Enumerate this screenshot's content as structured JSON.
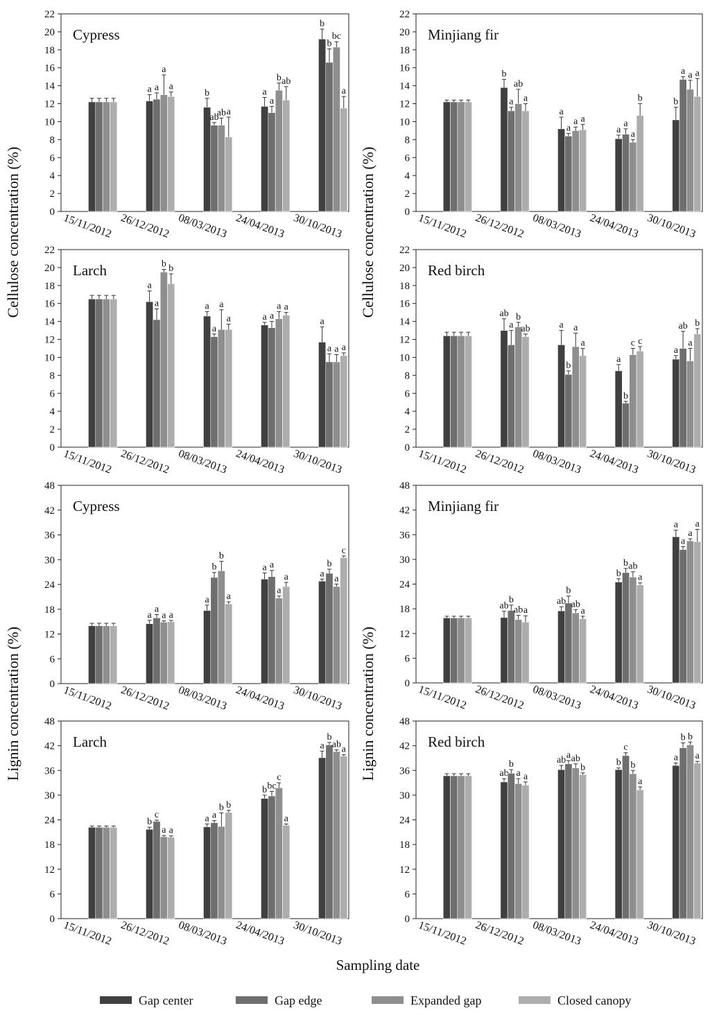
{
  "figure": {
    "y_axis_cellulose": "Cellulose concentration (%)",
    "y_axis_lignin": "Lignin concentration (%)",
    "x_axis_label": "Sampling date"
  },
  "legend": [
    {
      "name": "Gap center",
      "color": "#404040"
    },
    {
      "name": "Gap edge",
      "color": "#6e6e6e"
    },
    {
      "name": "Expanded gap",
      "color": "#8e8e8e"
    },
    {
      "name": "Closed canopy",
      "color": "#adadad"
    }
  ],
  "chart_data": [
    {
      "type": "bar",
      "title": "Cypress",
      "ylabel": "Cellulose concentration (%)",
      "ylim": [
        0,
        22
      ],
      "ytick_step": 2,
      "categories": [
        "15/11/2012",
        "26/12/2012",
        "08/03/2013",
        "24/04/2013",
        "30/10/2013"
      ],
      "series": [
        {
          "name": "Gap center",
          "values": [
            12.2,
            12.3,
            11.6,
            11.7,
            19.2
          ],
          "errors": [
            0.4,
            0.7,
            1.0,
            1.0,
            1.1
          ],
          "labels": [
            "",
            "a",
            "b",
            "a",
            "b"
          ]
        },
        {
          "name": "Gap edge",
          "values": [
            12.2,
            12.5,
            9.6,
            11.0,
            16.6
          ],
          "errors": [
            0.4,
            0.7,
            0.3,
            0.7,
            1.5
          ],
          "labels": [
            "",
            "a",
            "ab",
            "a",
            "b"
          ]
        },
        {
          "name": "Expanded gap",
          "values": [
            12.2,
            13.0,
            9.6,
            13.5,
            18.3
          ],
          "errors": [
            0.4,
            2.2,
            0.8,
            0.8,
            0.6
          ],
          "labels": [
            "",
            "a",
            "ab",
            "b",
            "bc"
          ]
        },
        {
          "name": "Closed canopy",
          "values": [
            12.2,
            12.8,
            8.3,
            12.4,
            11.5
          ],
          "errors": [
            0.4,
            0.5,
            2.2,
            1.5,
            1.3
          ],
          "labels": [
            "",
            "a",
            "a",
            "ab",
            "a"
          ]
        }
      ]
    },
    {
      "type": "bar",
      "title": "Minjiang fir",
      "ylabel": "Cellulose concentration (%)",
      "ylim": [
        0,
        22
      ],
      "ytick_step": 2,
      "categories": [
        "15/11/2012",
        "26/12/2012",
        "08/03/2013",
        "24/04/2013",
        "30/10/2013"
      ],
      "series": [
        {
          "name": "Gap center",
          "values": [
            12.2,
            13.8,
            9.2,
            8.1,
            10.2
          ],
          "errors": [
            0.2,
            0.9,
            1.3,
            0.4,
            1.4
          ],
          "labels": [
            "",
            "b",
            "a",
            "a",
            "b"
          ]
        },
        {
          "name": "Gap edge",
          "values": [
            12.2,
            11.2,
            8.4,
            8.6,
            14.7
          ],
          "errors": [
            0.2,
            0.4,
            0.3,
            0.6,
            0.3
          ],
          "labels": [
            "",
            "a",
            "a",
            "a",
            "a"
          ]
        },
        {
          "name": "Expanded gap",
          "values": [
            12.2,
            12.0,
            9.0,
            7.7,
            13.6
          ],
          "errors": [
            0.2,
            1.6,
            0.4,
            0.3,
            1.0
          ],
          "labels": [
            "",
            "ab",
            "a",
            "a",
            "a"
          ]
        },
        {
          "name": "Closed canopy",
          "values": [
            12.2,
            11.2,
            9.1,
            10.7,
            12.8
          ],
          "errors": [
            0.2,
            0.8,
            0.6,
            1.3,
            2.0
          ],
          "labels": [
            "",
            "a",
            "a",
            "b",
            "a"
          ]
        }
      ]
    },
    {
      "type": "bar",
      "title": "Larch",
      "ylabel": "Cellulose concentration (%)",
      "ylim": [
        0,
        22
      ],
      "ytick_step": 2,
      "categories": [
        "15/11/2012",
        "26/12/2012",
        "08/03/2013",
        "24/04/2013",
        "30/10/2013"
      ],
      "series": [
        {
          "name": "Gap center",
          "values": [
            16.5,
            16.2,
            14.6,
            13.6,
            11.7
          ],
          "errors": [
            0.4,
            1.2,
            0.5,
            0.3,
            1.7
          ],
          "labels": [
            "",
            "a",
            "a",
            "a",
            "a"
          ]
        },
        {
          "name": "Gap edge",
          "values": [
            16.5,
            14.2,
            12.3,
            13.3,
            9.5
          ],
          "errors": [
            0.4,
            1.2,
            0.3,
            0.7,
            0.9
          ],
          "labels": [
            "",
            "a",
            "a",
            "a",
            "a"
          ]
        },
        {
          "name": "Expanded gap",
          "values": [
            16.5,
            19.5,
            13.1,
            14.3,
            9.5
          ],
          "errors": [
            0.4,
            0.3,
            2.2,
            0.8,
            0.8
          ],
          "labels": [
            "",
            "b",
            "a",
            "a",
            "a"
          ]
        },
        {
          "name": "Closed canopy",
          "values": [
            16.5,
            18.2,
            13.1,
            14.7,
            10.2
          ],
          "errors": [
            0.4,
            1.1,
            0.6,
            0.3,
            0.3
          ],
          "labels": [
            "",
            "b",
            "a",
            "a",
            "a"
          ]
        }
      ]
    },
    {
      "type": "bar",
      "title": "Red birch",
      "ylabel": "Cellulose concentration (%)",
      "ylim": [
        0,
        22
      ],
      "ytick_step": 2,
      "categories": [
        "15/11/2012",
        "26/12/2012",
        "08/03/2013",
        "24/04/2013",
        "30/10/2013"
      ],
      "series": [
        {
          "name": "Gap center",
          "values": [
            12.4,
            13.0,
            11.4,
            8.5,
            9.8
          ],
          "errors": [
            0.4,
            1.3,
            1.6,
            0.7,
            0.4
          ],
          "labels": [
            "",
            "ab",
            "a",
            "a",
            "a"
          ]
        },
        {
          "name": "Gap edge",
          "values": [
            12.4,
            11.4,
            8.1,
            4.9,
            11.0
          ],
          "errors": [
            0.4,
            1.6,
            0.4,
            0.2,
            1.9
          ],
          "labels": [
            "",
            "a",
            "b",
            "b",
            "ab"
          ]
        },
        {
          "name": "Expanded gap",
          "values": [
            12.4,
            13.4,
            11.2,
            10.3,
            9.6
          ],
          "errors": [
            0.4,
            0.5,
            1.5,
            0.7,
            1.4
          ],
          "labels": [
            "",
            "b",
            "a",
            "c",
            "a"
          ]
        },
        {
          "name": "Closed canopy",
          "values": [
            12.4,
            12.3,
            10.2,
            10.7,
            12.6
          ],
          "errors": [
            0.4,
            0.3,
            0.8,
            0.5,
            0.6
          ],
          "labels": [
            "",
            "ab",
            "a",
            "c",
            "b"
          ]
        }
      ]
    },
    {
      "type": "bar",
      "title": "Cypress",
      "ylabel": "Lignin concentration (%)",
      "ylim": [
        0,
        48
      ],
      "ytick_step": 6,
      "categories": [
        "15/11/2012",
        "26/12/2012",
        "08/03/2013",
        "24/04/2013",
        "30/10/2013"
      ],
      "series": [
        {
          "name": "Gap center",
          "values": [
            14.0,
            14.5,
            17.7,
            25.3,
            24.8
          ],
          "errors": [
            0.6,
            0.8,
            1.3,
            1.5,
            0.5
          ],
          "labels": [
            "",
            "a",
            "a",
            "a",
            "a"
          ]
        },
        {
          "name": "Gap edge",
          "values": [
            14.0,
            15.9,
            25.7,
            25.9,
            26.7
          ],
          "errors": [
            0.6,
            0.8,
            1.2,
            1.5,
            1.0
          ],
          "labels": [
            "",
            "a",
            "b",
            "a",
            "b"
          ]
        },
        {
          "name": "Expanded gap",
          "values": [
            14.0,
            14.9,
            27.3,
            20.7,
            23.5
          ],
          "errors": [
            0.6,
            0.3,
            2.3,
            0.5,
            0.6
          ],
          "labels": [
            "",
            "a",
            "b",
            "a",
            "a"
          ]
        },
        {
          "name": "Closed canopy",
          "values": [
            14.0,
            15.0,
            19.3,
            23.5,
            30.5
          ],
          "errors": [
            0.6,
            0.3,
            0.5,
            1.0,
            0.4
          ],
          "labels": [
            "",
            "a",
            "a",
            "a",
            "c"
          ]
        }
      ]
    },
    {
      "type": "bar",
      "title": "Minjiang fir",
      "ylabel": "Lignin concentration (%)",
      "ylim": [
        0,
        48
      ],
      "ytick_step": 6,
      "categories": [
        "15/11/2012",
        "26/12/2012",
        "08/03/2013",
        "24/04/2013",
        "30/10/2013"
      ],
      "series": [
        {
          "name": "Gap center",
          "values": [
            15.8,
            15.9,
            17.5,
            24.5,
            35.5
          ],
          "errors": [
            0.4,
            1.5,
            1.0,
            0.8,
            1.6
          ],
          "labels": [
            "",
            "ab",
            "ab",
            "b",
            "a"
          ]
        },
        {
          "name": "Gap edge",
          "values": [
            15.8,
            17.6,
            19.4,
            26.8,
            32.4
          ],
          "errors": [
            0.4,
            1.3,
            1.7,
            1.0,
            0.7
          ],
          "labels": [
            "",
            "b",
            "b",
            "b",
            "a"
          ]
        },
        {
          "name": "Expanded gap",
          "values": [
            15.8,
            15.4,
            17.0,
            25.7,
            34.5
          ],
          "errors": [
            0.4,
            1.0,
            0.8,
            1.3,
            0.5
          ],
          "labels": [
            "",
            "ab",
            "ab",
            "ab",
            "a"
          ]
        },
        {
          "name": "Closed canopy",
          "values": [
            15.8,
            14.8,
            15.6,
            23.8,
            34.3
          ],
          "errors": [
            0.4,
            1.5,
            0.6,
            0.5,
            3.0
          ],
          "labels": [
            "",
            "a",
            "a",
            "a",
            "a"
          ]
        }
      ]
    },
    {
      "type": "bar",
      "title": "Larch",
      "ylabel": "Lignin concentration (%)",
      "ylim": [
        0,
        48
      ],
      "ytick_step": 6,
      "categories": [
        "15/11/2012",
        "26/12/2012",
        "08/03/2013",
        "24/04/2013",
        "30/10/2013"
      ],
      "series": [
        {
          "name": "Gap center",
          "values": [
            22.2,
            21.7,
            22.3,
            29.2,
            39.1
          ],
          "errors": [
            0.3,
            0.5,
            0.7,
            0.8,
            1.6
          ],
          "labels": [
            "",
            "b",
            "a",
            "b",
            "a"
          ]
        },
        {
          "name": "Gap edge",
          "values": [
            22.2,
            23.6,
            23.3,
            29.8,
            42.2
          ],
          "errors": [
            0.3,
            0.3,
            0.5,
            1.1,
            0.6
          ],
          "labels": [
            "",
            "c",
            "a",
            "bc",
            "b"
          ]
        },
        {
          "name": "Expanded gap",
          "values": [
            22.2,
            19.9,
            22.4,
            31.8,
            40.6
          ],
          "errors": [
            0.3,
            0.3,
            3.3,
            1.2,
            0.4
          ],
          "labels": [
            "",
            "a",
            "b",
            "c",
            "ab"
          ]
        },
        {
          "name": "Closed canopy",
          "values": [
            22.2,
            19.8,
            25.8,
            22.7,
            39.5
          ],
          "errors": [
            0.3,
            0.3,
            0.5,
            0.3,
            0.3
          ],
          "labels": [
            "",
            "a",
            "b",
            "a",
            "a"
          ]
        }
      ]
    },
    {
      "type": "bar",
      "title": "Red birch",
      "ylabel": "Lignin concentration (%)",
      "ylim": [
        0,
        48
      ],
      "ytick_step": 6,
      "categories": [
        "15/11/2012",
        "26/12/2012",
        "08/03/2013",
        "24/04/2013",
        "30/10/2013"
      ],
      "series": [
        {
          "name": "Gap center",
          "values": [
            34.7,
            33.2,
            36.2,
            36.2,
            37.2
          ],
          "errors": [
            0.5,
            0.8,
            1.0,
            0.4,
            0.6
          ],
          "labels": [
            "",
            "ab",
            "ab",
            "b",
            "a"
          ]
        },
        {
          "name": "Gap edge",
          "values": [
            34.7,
            35.3,
            37.6,
            39.6,
            41.5
          ],
          "errors": [
            0.5,
            0.9,
            0.8,
            0.7,
            1.2
          ],
          "labels": [
            "",
            "b",
            "a",
            "c",
            "b"
          ]
        },
        {
          "name": "Expanded gap",
          "values": [
            34.7,
            32.8,
            36.6,
            35.2,
            42.2
          ],
          "errors": [
            0.5,
            1.2,
            1.0,
            0.8,
            0.7
          ],
          "labels": [
            "",
            "a",
            "ab",
            "b",
            "b"
          ]
        },
        {
          "name": "Closed canopy",
          "values": [
            34.7,
            32.4,
            35.0,
            31.3,
            37.8
          ],
          "errors": [
            0.5,
            0.8,
            0.4,
            0.7,
            0.4
          ],
          "labels": [
            "",
            "a",
            "b",
            "a",
            "a"
          ]
        }
      ]
    }
  ]
}
